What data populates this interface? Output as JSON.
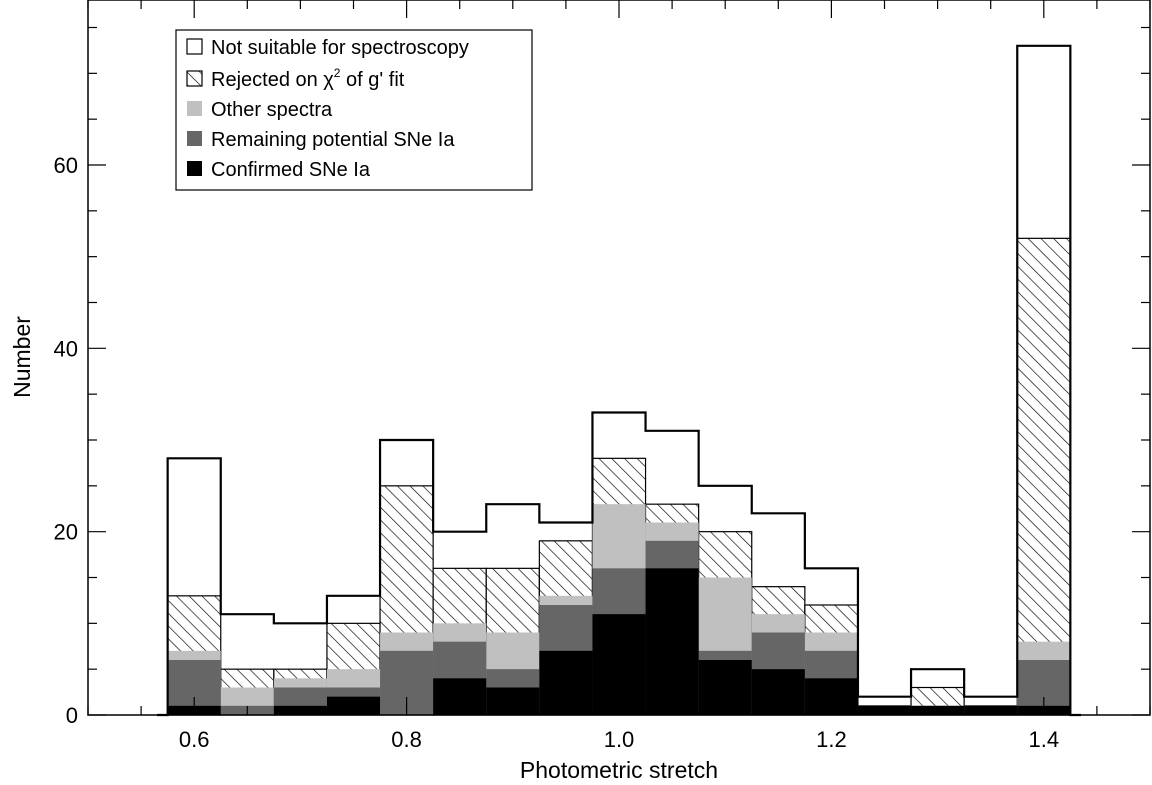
{
  "chart_data": {
    "type": "bar",
    "subtype": "stacked-histogram",
    "title": "",
    "xlabel": "Photometric stretch",
    "ylabel": "Number",
    "xlim": [
      0.5,
      1.5
    ],
    "ylim": [
      0,
      78
    ],
    "xticks": [
      0.6,
      0.8,
      1.0,
      1.2,
      1.4
    ],
    "xtick_labels": [
      "0.6",
      "0.8",
      "1.0",
      "1.2",
      "1.4"
    ],
    "yticks": [
      0,
      20,
      40,
      60
    ],
    "ytick_labels": [
      "0",
      "20",
      "40",
      "60"
    ],
    "grid": false,
    "legend_position": "top-left",
    "bin_width": 0.05,
    "bin_centers": [
      0.6,
      0.65,
      0.7,
      0.75,
      0.8,
      0.85,
      0.9,
      0.95,
      1.0,
      1.05,
      1.1,
      1.15,
      1.2,
      1.25,
      1.3,
      1.35,
      1.4
    ],
    "series": [
      {
        "name": "Confirmed SNe Ia",
        "style": "solid",
        "color": "#000000",
        "values": [
          1,
          0,
          1,
          2,
          0,
          4,
          3,
          7,
          11,
          16,
          6,
          5,
          4,
          1,
          1,
          1,
          1
        ]
      },
      {
        "name": "Remaining potential SNe Ia",
        "style": "solid",
        "color": "#666666",
        "values": [
          6,
          1,
          3,
          3,
          7,
          8,
          5,
          12,
          16,
          19,
          7,
          9,
          7,
          1,
          1,
          1,
          6
        ]
      },
      {
        "name": "Other spectra",
        "style": "solid",
        "color": "#c0c0c0",
        "values": [
          7,
          3,
          4,
          5,
          9,
          10,
          9,
          13,
          23,
          21,
          15,
          11,
          9,
          1,
          1,
          1,
          8
        ]
      },
      {
        "name": "Rejected on χ² of g' fit",
        "style": "hatched",
        "color": "#000000",
        "values": [
          13,
          5,
          5,
          10,
          25,
          16,
          16,
          19,
          28,
          23,
          20,
          14,
          12,
          1,
          3,
          1,
          52
        ]
      },
      {
        "name": "Not suitable for spectroscopy",
        "style": "open",
        "color": "#000000",
        "values": [
          28,
          11,
          10,
          13,
          30,
          20,
          23,
          21,
          33,
          31,
          25,
          22,
          16,
          2,
          5,
          2,
          73
        ]
      }
    ],
    "values_note": "cumulative stacked heights; each series value is the top of its band"
  },
  "legend": {
    "entries": [
      {
        "label": "Not suitable for spectroscopy",
        "swatch": "open"
      },
      {
        "label_pre": "Rejected on ",
        "label_chi": "χ",
        "label_sup": "2",
        "label_post": " of g' fit",
        "swatch": "hatched"
      },
      {
        "label": "Other spectra",
        "swatch": "#c0c0c0"
      },
      {
        "label": "Remaining potential SNe Ia",
        "swatch": "#666666"
      },
      {
        "label": "Confirmed SNe Ia",
        "swatch": "#000000"
      }
    ]
  }
}
